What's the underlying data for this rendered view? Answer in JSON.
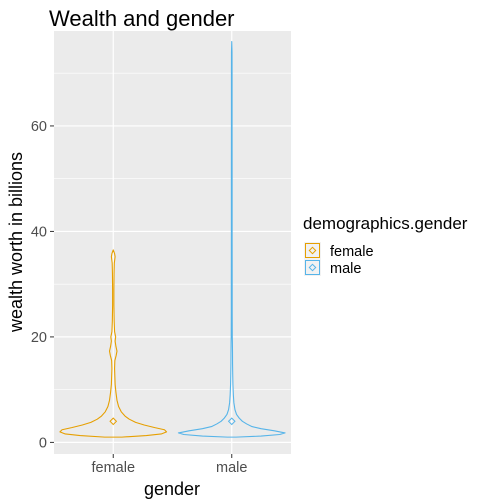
{
  "chart_data": {
    "type": "violin",
    "title": "Wealth and gender",
    "xlabel": "gender",
    "ylabel": "wealth worth in billions",
    "categories": [
      "female",
      "male"
    ],
    "ylim": [
      -2.2,
      78
    ],
    "yticks": [
      0,
      20,
      40,
      60
    ],
    "grid": true,
    "legend": {
      "title": "demographics.gender",
      "placement": "right",
      "entries": [
        "female",
        "male"
      ]
    },
    "series": [
      {
        "name": "female",
        "color": "#E69F00",
        "mean": 4.0,
        "min": 1.0,
        "max": 36.5,
        "profile": [
          [
            1.0,
            0.16
          ],
          [
            1.3,
            0.62
          ],
          [
            1.6,
            0.9
          ],
          [
            2.0,
            1.0
          ],
          [
            2.4,
            0.96
          ],
          [
            2.8,
            0.78
          ],
          [
            3.3,
            0.58
          ],
          [
            3.8,
            0.42
          ],
          [
            4.4,
            0.3
          ],
          [
            5.0,
            0.22
          ],
          [
            5.8,
            0.15
          ],
          [
            6.8,
            0.1
          ],
          [
            8.0,
            0.07
          ],
          [
            9.5,
            0.05
          ],
          [
            11.0,
            0.035
          ],
          [
            12.5,
            0.03
          ],
          [
            14.0,
            0.025
          ],
          [
            15.5,
            0.03
          ],
          [
            16.5,
            0.055
          ],
          [
            17.3,
            0.07
          ],
          [
            18.2,
            0.05
          ],
          [
            19.2,
            0.035
          ],
          [
            20.0,
            0.045
          ],
          [
            21.0,
            0.025
          ],
          [
            23.0,
            0.017
          ],
          [
            26.0,
            0.012
          ],
          [
            29.0,
            0.012
          ],
          [
            32.0,
            0.015
          ],
          [
            34.0,
            0.02
          ],
          [
            35.2,
            0.035
          ],
          [
            35.8,
            0.025
          ],
          [
            36.5,
            0.0
          ]
        ]
      },
      {
        "name": "male",
        "color": "#56B4E9",
        "mean": 4.0,
        "min": 1.0,
        "max": 76.0,
        "profile": [
          [
            1.0,
            0.08
          ],
          [
            1.2,
            0.55
          ],
          [
            1.5,
            0.9
          ],
          [
            1.8,
            1.0
          ],
          [
            2.2,
            0.8
          ],
          [
            2.6,
            0.55
          ],
          [
            3.0,
            0.38
          ],
          [
            3.5,
            0.28
          ],
          [
            4.0,
            0.2
          ],
          [
            4.6,
            0.14
          ],
          [
            5.3,
            0.09
          ],
          [
            6.2,
            0.06
          ],
          [
            7.5,
            0.04
          ],
          [
            9.0,
            0.03
          ],
          [
            11.0,
            0.022
          ],
          [
            13.0,
            0.018
          ],
          [
            15.0,
            0.015
          ],
          [
            17.0,
            0.014
          ],
          [
            19.0,
            0.012
          ],
          [
            20.0,
            0.01
          ],
          [
            25.0,
            0.008
          ],
          [
            30.0,
            0.008
          ],
          [
            40.0,
            0.007
          ],
          [
            50.0,
            0.007
          ],
          [
            60.0,
            0.006
          ],
          [
            70.0,
            0.006
          ],
          [
            74.0,
            0.005
          ],
          [
            76.0,
            0.0
          ]
        ]
      }
    ]
  }
}
